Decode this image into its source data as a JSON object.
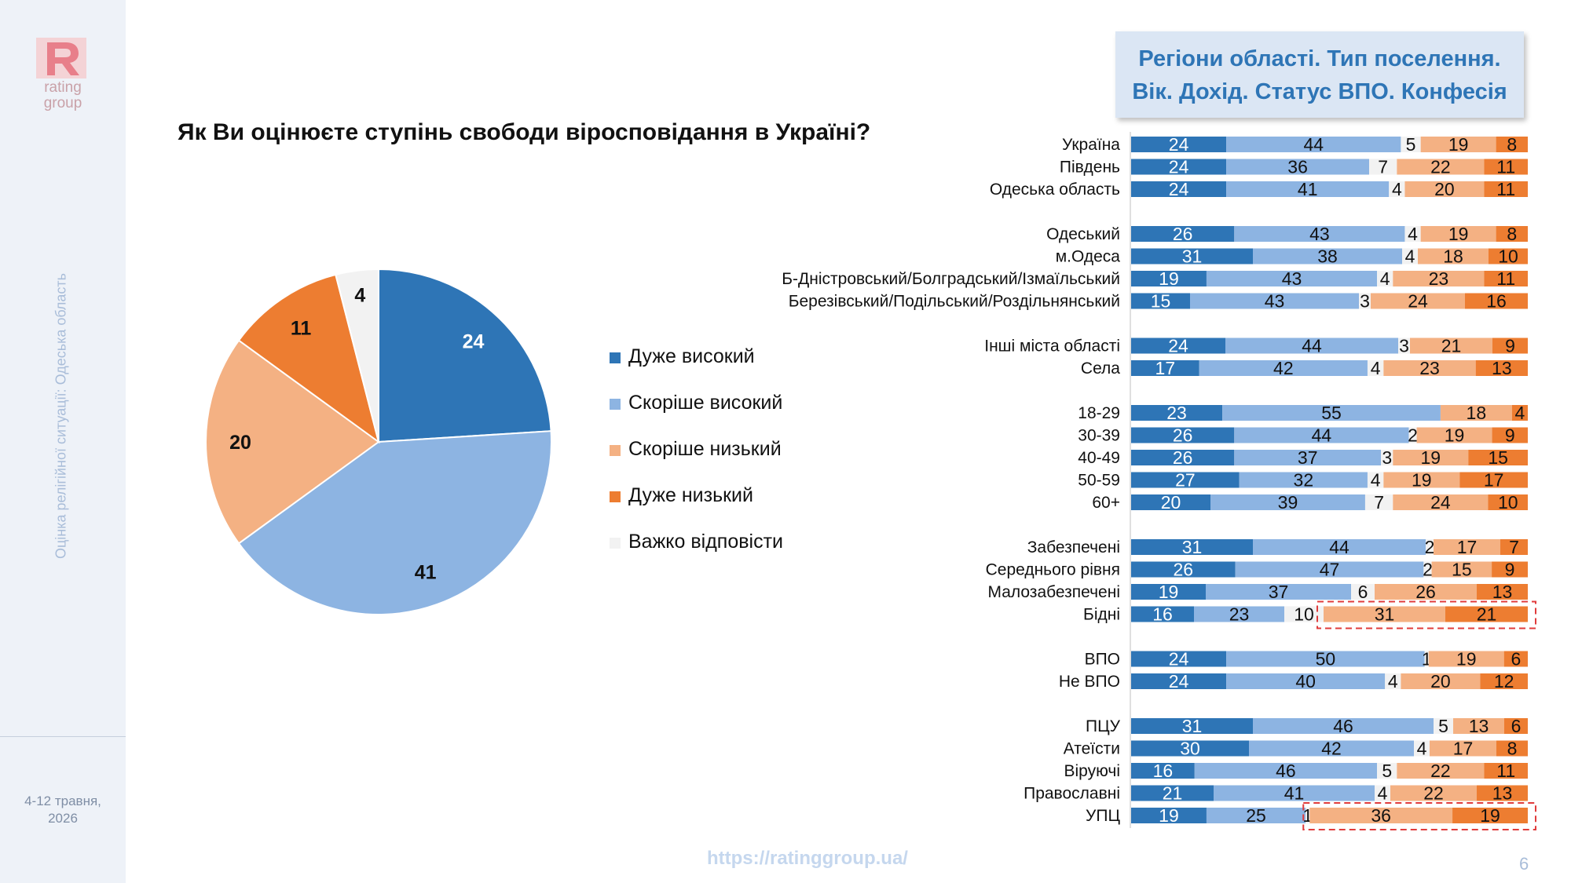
{
  "logo": {
    "line1": "rating",
    "line2": "group"
  },
  "sidebar": {
    "vertical_title": "Оцінка релігійної ситуації: Одеська область",
    "date_line1": "4-12 травня,",
    "date_line2": "2026"
  },
  "question": "Як Ви оцінюєте ступінь свободи віросповідання в Україні?",
  "header_box": {
    "line1": "Регіони області. Тип поселення.",
    "line2": "Вік. Дохід. Статус ВПО. Конфесія"
  },
  "footer": {
    "url": "https://ratinggroup.ua/",
    "page_number": "6"
  },
  "colors": {
    "very_high": "#2e75b6",
    "rather_high": "#8db4e2",
    "rather_low": "#f4b183",
    "very_low": "#ed7d31",
    "hard_to_say": "#f2f2f2",
    "highlight": "#e03c3c"
  },
  "chart_data": [
    {
      "type": "pie",
      "categories": [
        "Дуже високий",
        "Скоріше високий",
        "Скоріше низький",
        "Дуже низький",
        "Важко відповісти"
      ],
      "values": [
        24,
        41,
        20,
        11,
        4
      ],
      "legend_position": "right"
    },
    {
      "type": "bar",
      "orientation": "horizontal-stacked",
      "series_order": [
        "Дуже високий",
        "Скоріше високий",
        "Важко відповісти",
        "Скоріше низький",
        "Дуже низький"
      ],
      "groups": [
        {
          "rows": [
            {
              "label": "Україна",
              "values": [
                24,
                44,
                5,
                19,
                8
              ]
            },
            {
              "label": "Південь",
              "values": [
                24,
                36,
                7,
                22,
                11
              ]
            },
            {
              "label": "Одеська область",
              "values": [
                24,
                41,
                4,
                20,
                11
              ]
            }
          ]
        },
        {
          "rows": [
            {
              "label": "Одеський",
              "values": [
                26,
                43,
                4,
                19,
                8
              ]
            },
            {
              "label": "м.Одеса",
              "values": [
                31,
                38,
                4,
                18,
                10
              ]
            },
            {
              "label": "Б-Дністровський/Болградський/Ізмаїльський",
              "values": [
                19,
                43,
                4,
                23,
                11
              ]
            },
            {
              "label": "Березівський/Подільський/Роздільнянський",
              "values": [
                15,
                43,
                3,
                24,
                16
              ]
            }
          ]
        },
        {
          "rows": [
            {
              "label": "Інші міста області",
              "values": [
                24,
                44,
                3,
                21,
                9
              ]
            },
            {
              "label": "Села",
              "values": [
                17,
                42,
                4,
                23,
                13
              ]
            }
          ]
        },
        {
          "rows": [
            {
              "label": "18-29",
              "values": [
                23,
                55,
                0,
                18,
                4
              ]
            },
            {
              "label": "30-39",
              "values": [
                26,
                44,
                2,
                19,
                9
              ]
            },
            {
              "label": "40-49",
              "values": [
                26,
                37,
                3,
                19,
                15
              ]
            },
            {
              "label": "50-59",
              "values": [
                27,
                32,
                4,
                19,
                17
              ]
            },
            {
              "label": "60+",
              "values": [
                20,
                39,
                7,
                24,
                10
              ]
            }
          ]
        },
        {
          "rows": [
            {
              "label": "Забезпечені",
              "values": [
                31,
                44,
                2,
                17,
                7
              ]
            },
            {
              "label": "Середнього рівня",
              "values": [
                26,
                47,
                2,
                15,
                9
              ]
            },
            {
              "label": "Малозабезпечені",
              "values": [
                19,
                37,
                6,
                26,
                13
              ]
            },
            {
              "label": "Бідні",
              "values": [
                16,
                23,
                10,
                31,
                21
              ],
              "highlight": true
            }
          ]
        },
        {
          "rows": [
            {
              "label": "ВПО",
              "values": [
                24,
                50,
                1,
                19,
                6
              ]
            },
            {
              "label": "Не ВПО",
              "values": [
                24,
                40,
                4,
                20,
                12
              ]
            }
          ]
        },
        {
          "rows": [
            {
              "label": "ПЦУ",
              "values": [
                31,
                46,
                5,
                13,
                6
              ]
            },
            {
              "label": "Атеїсти",
              "values": [
                30,
                42,
                4,
                17,
                8
              ]
            },
            {
              "label": "Віруючі",
              "values": [
                16,
                46,
                5,
                22,
                11
              ]
            },
            {
              "label": "Православні",
              "values": [
                21,
                41,
                4,
                22,
                13
              ]
            },
            {
              "label": "УПЦ",
              "values": [
                19,
                25,
                1,
                36,
                19
              ],
              "highlight": true
            }
          ]
        }
      ]
    }
  ]
}
